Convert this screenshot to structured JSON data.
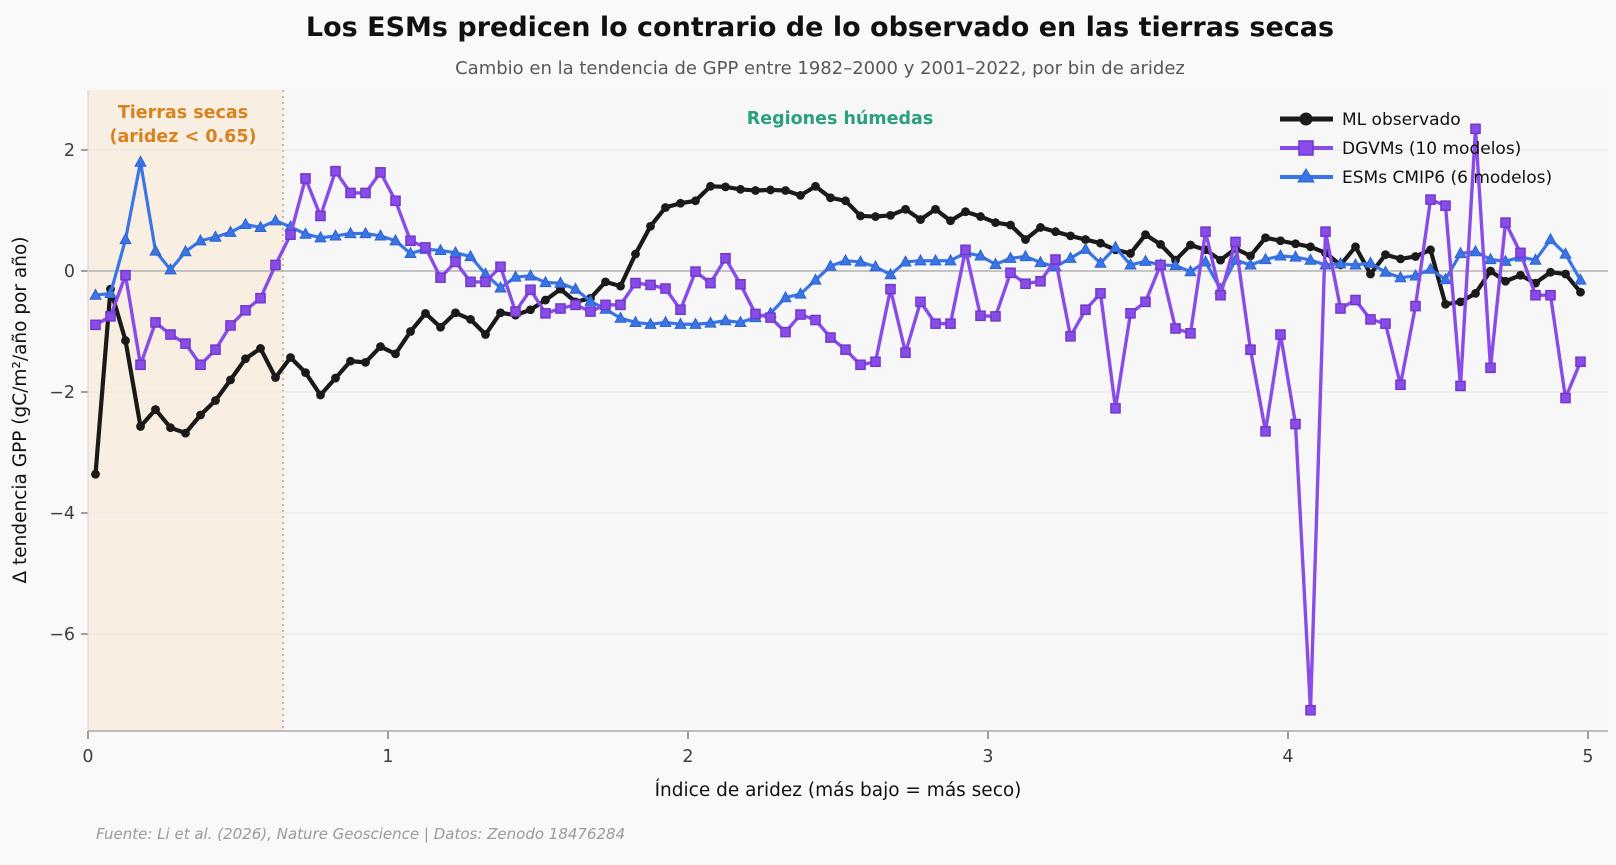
{
  "title": "Los ESMs predicen lo contrario de lo observado en las tierras secas",
  "subtitle": "Cambio en la tendencia de GPP entre 1982–2000 y 2001–2022, por bin de aridez",
  "footer": "Fuente: Li et al. (2026), Nature Geoscience | Datos: Zenodo 18476284",
  "annotations": {
    "dryland_line1": "Tierras secas",
    "dryland_line2": "(aridez < 0.65)",
    "dryland_color": "#d9831e",
    "humid": "Regiones húmedas",
    "humid_color": "#2aa07c"
  },
  "axes": {
    "x_label": "Índice de aridez (más bajo = más seco)",
    "y_label": "Δ tendencia GPP (gC/m²/año por año)",
    "x_ticks": [
      0,
      1,
      2,
      3,
      4,
      5
    ],
    "y_ticks": [
      2,
      0,
      -2,
      -4,
      -6
    ]
  },
  "colors": {
    "observed": "#1a1a1a",
    "dgvm": "#8a4ce8",
    "esm": "#3a75e8",
    "dryland_shade": "#f8eee2",
    "grid": "#e6e6e6",
    "zero_line": "#b3b3b3",
    "spine": "#9a9a9a",
    "dotted_divider": "#b5a28c",
    "plot_bg": "#f7f7f8"
  },
  "chart_data": {
    "type": "line",
    "title": "Los ESMs predicen lo contrario de lo observado en las tierras secas",
    "xlabel": "Índice de aridez (más bajo = más seco)",
    "ylabel": "Δ tendencia GPP (gC/m²/año por año)",
    "xlim": [
      0,
      5.07
    ],
    "ylim": [
      -7.6,
      3.0
    ],
    "grid": true,
    "legend_position": "upper right",
    "dryland_threshold": 0.65,
    "x": [
      0.025,
      0.075,
      0.125,
      0.175,
      0.225,
      0.275,
      0.325,
      0.375,
      0.425,
      0.475,
      0.525,
      0.575,
      0.625,
      0.675,
      0.725,
      0.775,
      0.825,
      0.875,
      0.925,
      0.975,
      1.025,
      1.075,
      1.125,
      1.175,
      1.225,
      1.275,
      1.325,
      1.375,
      1.425,
      1.475,
      1.525,
      1.575,
      1.625,
      1.675,
      1.725,
      1.775,
      1.825,
      1.875,
      1.925,
      1.975,
      2.025,
      2.075,
      2.125,
      2.175,
      2.225,
      2.275,
      2.325,
      2.375,
      2.425,
      2.475,
      2.525,
      2.575,
      2.625,
      2.675,
      2.725,
      2.775,
      2.825,
      2.875,
      2.925,
      2.975,
      3.025,
      3.075,
      3.125,
      3.175,
      3.225,
      3.275,
      3.325,
      3.375,
      3.425,
      3.475,
      3.525,
      3.575,
      3.625,
      3.675,
      3.725,
      3.775,
      3.825,
      3.875,
      3.925,
      3.975,
      4.025,
      4.075,
      4.125,
      4.175,
      4.225,
      4.275,
      4.325,
      4.375,
      4.425,
      4.475,
      4.525,
      4.575,
      4.625,
      4.675,
      4.725,
      4.775,
      4.825,
      4.875,
      4.925,
      4.975
    ],
    "series": [
      {
        "id": "observed",
        "name": "ML observado",
        "color": "#1a1a1a",
        "edge": "#1a1a1a",
        "marker": "circle",
        "line_width": 4.2,
        "values": [
          -3.36,
          -0.3,
          -1.15,
          -2.57,
          -2.29,
          -2.59,
          -2.68,
          -2.38,
          -2.14,
          -1.8,
          -1.45,
          -1.28,
          -1.76,
          -1.43,
          -1.68,
          -2.05,
          -1.77,
          -1.49,
          -1.51,
          -1.25,
          -1.37,
          -1.0,
          -0.7,
          -0.93,
          -0.69,
          -0.8,
          -1.05,
          -0.69,
          -0.73,
          -0.64,
          -0.48,
          -0.3,
          -0.51,
          -0.45,
          -0.18,
          -0.25,
          0.28,
          0.74,
          1.05,
          1.12,
          1.16,
          1.4,
          1.39,
          1.35,
          1.33,
          1.34,
          1.33,
          1.25,
          1.4,
          1.21,
          1.16,
          0.91,
          0.9,
          0.92,
          1.02,
          0.85,
          1.02,
          0.83,
          0.98,
          0.9,
          0.8,
          0.76,
          0.52,
          0.72,
          0.65,
          0.58,
          0.52,
          0.46,
          0.35,
          0.29,
          0.6,
          0.44,
          0.18,
          0.43,
          0.35,
          0.18,
          0.37,
          0.25,
          0.55,
          0.5,
          0.45,
          0.4,
          0.3,
          0.1,
          0.4,
          -0.05,
          0.27,
          0.2,
          0.24,
          0.35,
          -0.55,
          -0.51,
          -0.37,
          0.0,
          -0.17,
          -0.07,
          -0.2,
          -0.02,
          -0.05,
          -0.35
        ]
      },
      {
        "id": "esm",
        "name": "ESMs CMIP6 (6 modelos)",
        "color": "#3a75e8",
        "edge": "#2f62c9",
        "marker": "triangle",
        "line_width": 3.2,
        "values": [
          -0.4,
          -0.37,
          0.52,
          1.8,
          0.33,
          0.02,
          0.32,
          0.5,
          0.56,
          0.64,
          0.77,
          0.72,
          0.83,
          0.73,
          0.61,
          0.55,
          0.58,
          0.62,
          0.62,
          0.58,
          0.5,
          0.29,
          0.36,
          0.34,
          0.3,
          0.24,
          -0.05,
          -0.28,
          -0.1,
          -0.08,
          -0.19,
          -0.2,
          -0.3,
          -0.5,
          -0.63,
          -0.78,
          -0.85,
          -0.88,
          -0.85,
          -0.88,
          -0.88,
          -0.86,
          -0.82,
          -0.85,
          -0.77,
          -0.7,
          -0.44,
          -0.38,
          -0.15,
          0.08,
          0.17,
          0.15,
          0.07,
          -0.06,
          0.15,
          0.17,
          0.17,
          0.17,
          0.3,
          0.25,
          0.11,
          0.21,
          0.24,
          0.14,
          0.07,
          0.21,
          0.36,
          0.13,
          0.39,
          0.1,
          0.16,
          0.1,
          0.09,
          -0.01,
          0.15,
          -0.3,
          0.18,
          0.1,
          0.19,
          0.25,
          0.23,
          0.18,
          0.1,
          0.12,
          0.1,
          0.13,
          -0.02,
          -0.11,
          -0.08,
          0.03,
          -0.14,
          0.29,
          0.32,
          0.19,
          0.16,
          0.23,
          0.18,
          0.52,
          0.28,
          -0.15
        ]
      },
      {
        "id": "dgvm",
        "name": "DGVMs (10 modelos)",
        "color": "#8a4ce8",
        "edge": "#6f37c9",
        "marker": "square",
        "line_width": 3.4,
        "values": [
          -0.89,
          -0.75,
          -0.07,
          -1.55,
          -0.85,
          -1.05,
          -1.2,
          -1.55,
          -1.3,
          -0.9,
          -0.65,
          -0.45,
          0.1,
          0.6,
          1.53,
          0.91,
          1.65,
          1.29,
          1.29,
          1.63,
          1.16,
          0.5,
          0.39,
          -0.11,
          0.15,
          -0.18,
          -0.18,
          0.07,
          -0.67,
          -0.31,
          -0.7,
          -0.62,
          -0.56,
          -0.67,
          -0.56,
          -0.56,
          -0.2,
          -0.23,
          -0.29,
          -0.64,
          -0.01,
          -0.2,
          0.21,
          -0.22,
          -0.71,
          -0.77,
          -1.01,
          -0.72,
          -0.81,
          -1.1,
          -1.3,
          -1.55,
          -1.5,
          -0.3,
          -1.35,
          -0.51,
          -0.87,
          -0.87,
          0.35,
          -0.74,
          -0.75,
          -0.03,
          -0.21,
          -0.17,
          0.19,
          -1.08,
          -0.64,
          -0.37,
          -2.27,
          -0.7,
          -0.51,
          0.1,
          -0.95,
          -1.03,
          0.65,
          -0.4,
          0.48,
          -1.3,
          -2.65,
          -1.05,
          -2.53,
          -7.26,
          0.65,
          -0.62,
          -0.48,
          -0.8,
          -0.87,
          -1.88,
          -0.58,
          1.18,
          1.08,
          -1.9,
          2.35,
          -1.6,
          0.8,
          0.3,
          -0.4,
          -0.4,
          -2.1,
          -1.5
        ]
      }
    ],
    "legend_order": [
      "observed",
      "dgvm",
      "esm"
    ]
  }
}
